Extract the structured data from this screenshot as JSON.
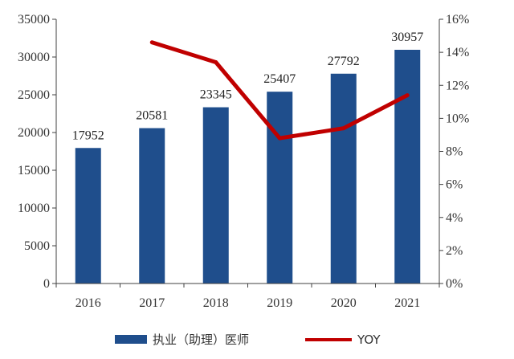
{
  "chart_data": {
    "type": "bar",
    "categories": [
      "2016",
      "2017",
      "2018",
      "2019",
      "2020",
      "2021"
    ],
    "series": [
      {
        "name": "执业（助理）医师",
        "type": "bar",
        "axis": "left",
        "values": [
          17952,
          20581,
          23345,
          25407,
          27792,
          30957
        ],
        "color": "#1f4e8c",
        "data_labels": [
          "17952",
          "20581",
          "23345",
          "25407",
          "27792",
          "30957"
        ]
      },
      {
        "name": "YOY",
        "type": "line",
        "axis": "right",
        "values": [
          null,
          14.6,
          13.4,
          8.8,
          9.4,
          11.4
        ],
        "color": "#c00000"
      }
    ],
    "y_left": {
      "ylim": [
        0,
        35000
      ],
      "ticks": [
        "0",
        "5000",
        "10000",
        "15000",
        "20000",
        "25000",
        "30000",
        "35000"
      ]
    },
    "y_right": {
      "ylim": [
        0,
        16
      ],
      "ticks": [
        "0%",
        "2%",
        "4%",
        "6%",
        "8%",
        "10%",
        "12%",
        "14%",
        "16%"
      ]
    },
    "grid": false,
    "legend_position": "bottom"
  }
}
